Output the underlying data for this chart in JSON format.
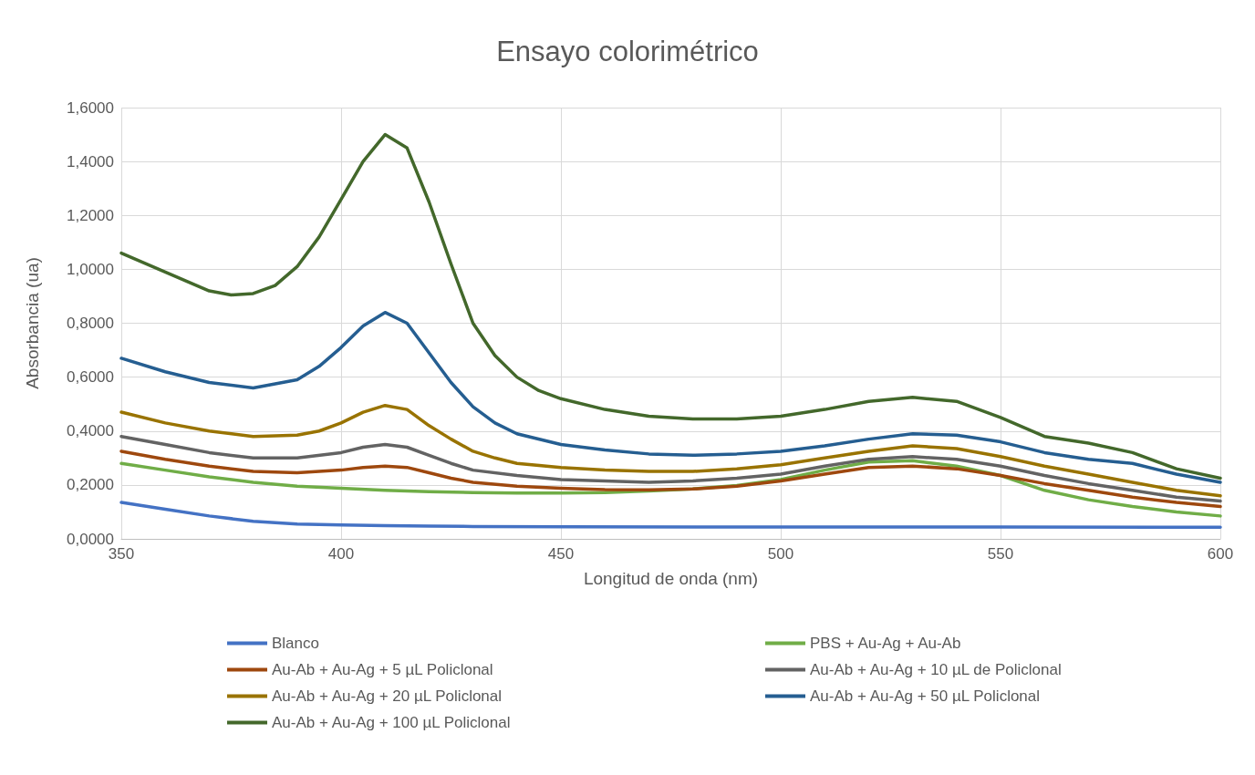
{
  "chart_data": {
    "type": "line",
    "title": "Ensayo colorimétrico",
    "xlabel": "Longitud de onda (nm)",
    "ylabel": "Absorbancia (ua)",
    "xlim": [
      350,
      600
    ],
    "xticks": [
      350,
      400,
      450,
      500,
      550,
      600
    ],
    "ylim": [
      0,
      1.6
    ],
    "yticks": [
      {
        "value": 0,
        "label": "0,0000"
      },
      {
        "value": 0.2,
        "label": "0,2000"
      },
      {
        "value": 0.4,
        "label": "0,4000"
      },
      {
        "value": 0.6,
        "label": "0,6000"
      },
      {
        "value": 0.8,
        "label": "0,8000"
      },
      {
        "value": 1.0,
        "label": "1,0000"
      },
      {
        "value": 1.2,
        "label": "1,2000"
      },
      {
        "value": 1.4,
        "label": "1,4000"
      },
      {
        "value": 1.6,
        "label": "1,6000"
      }
    ],
    "grid": true,
    "legend": "bottom",
    "marker": "none",
    "line_style": "solid",
    "series": [
      {
        "name": "Blanco",
        "color": "#4472c4",
        "x": [
          350,
          360,
          370,
          380,
          390,
          400,
          410,
          420,
          430,
          450,
          500,
          550,
          600
        ],
        "values": [
          0.135,
          0.11,
          0.085,
          0.065,
          0.055,
          0.052,
          0.049,
          0.047,
          0.046,
          0.045,
          0.044,
          0.044,
          0.043
        ]
      },
      {
        "name": "PBS + Au-Ag + Au-Ab",
        "color": "#70ad47",
        "x": [
          350,
          360,
          370,
          380,
          390,
          400,
          410,
          420,
          430,
          440,
          450,
          460,
          470,
          480,
          490,
          500,
          510,
          520,
          530,
          540,
          550,
          560,
          570,
          580,
          590,
          600
        ],
        "values": [
          0.28,
          0.255,
          0.23,
          0.21,
          0.195,
          0.188,
          0.18,
          0.175,
          0.172,
          0.17,
          0.17,
          0.172,
          0.178,
          0.185,
          0.198,
          0.22,
          0.255,
          0.285,
          0.29,
          0.27,
          0.235,
          0.18,
          0.145,
          0.12,
          0.1,
          0.085
        ]
      },
      {
        "name": "Au-Ab + Au-Ag + 5 µL Policlonal",
        "color": "#9e480e",
        "x": [
          350,
          360,
          370,
          380,
          390,
          400,
          405,
          410,
          415,
          420,
          425,
          430,
          440,
          450,
          460,
          470,
          480,
          490,
          500,
          510,
          520,
          530,
          540,
          550,
          560,
          570,
          580,
          590,
          600
        ],
        "values": [
          0.325,
          0.295,
          0.27,
          0.25,
          0.245,
          0.255,
          0.265,
          0.27,
          0.265,
          0.245,
          0.225,
          0.21,
          0.195,
          0.188,
          0.183,
          0.182,
          0.185,
          0.195,
          0.215,
          0.24,
          0.265,
          0.27,
          0.26,
          0.235,
          0.205,
          0.18,
          0.155,
          0.135,
          0.12
        ]
      },
      {
        "name": "Au-Ab + Au-Ag + 10 µL de Policlonal",
        "color": "#636363",
        "x": [
          350,
          360,
          370,
          380,
          390,
          400,
          405,
          410,
          415,
          420,
          425,
          430,
          440,
          450,
          460,
          470,
          480,
          490,
          500,
          510,
          520,
          530,
          540,
          550,
          560,
          570,
          580,
          590,
          600
        ],
        "values": [
          0.38,
          0.35,
          0.32,
          0.3,
          0.3,
          0.32,
          0.34,
          0.35,
          0.34,
          0.31,
          0.28,
          0.255,
          0.235,
          0.22,
          0.215,
          0.21,
          0.215,
          0.225,
          0.24,
          0.27,
          0.295,
          0.305,
          0.295,
          0.27,
          0.235,
          0.205,
          0.18,
          0.155,
          0.14
        ]
      },
      {
        "name": "Au-Ab + Au-Ag + 20 µL Policlonal",
        "color": "#997300",
        "x": [
          350,
          360,
          370,
          380,
          390,
          395,
          400,
          405,
          410,
          415,
          420,
          425,
          430,
          435,
          440,
          450,
          460,
          470,
          480,
          490,
          500,
          510,
          520,
          530,
          540,
          550,
          560,
          570,
          580,
          590,
          600
        ],
        "values": [
          0.47,
          0.43,
          0.4,
          0.38,
          0.385,
          0.4,
          0.43,
          0.47,
          0.495,
          0.48,
          0.42,
          0.37,
          0.325,
          0.3,
          0.28,
          0.265,
          0.255,
          0.25,
          0.25,
          0.26,
          0.275,
          0.3,
          0.325,
          0.345,
          0.335,
          0.305,
          0.27,
          0.24,
          0.21,
          0.18,
          0.16
        ]
      },
      {
        "name": "Au-Ab + Au-Ag + 50 µL Policlonal",
        "color": "#255e91",
        "x": [
          350,
          360,
          370,
          380,
          390,
          395,
          400,
          405,
          410,
          415,
          420,
          425,
          430,
          435,
          440,
          450,
          460,
          470,
          480,
          490,
          500,
          510,
          520,
          530,
          540,
          550,
          560,
          570,
          580,
          590,
          600
        ],
        "values": [
          0.67,
          0.62,
          0.58,
          0.56,
          0.59,
          0.64,
          0.71,
          0.79,
          0.84,
          0.8,
          0.69,
          0.58,
          0.49,
          0.43,
          0.39,
          0.35,
          0.33,
          0.315,
          0.31,
          0.315,
          0.325,
          0.345,
          0.37,
          0.39,
          0.385,
          0.36,
          0.32,
          0.295,
          0.28,
          0.24,
          0.21
        ]
      },
      {
        "name": "Au-Ab + Au-Ag + 100 µL Policlonal",
        "color": "#43682b",
        "x": [
          350,
          360,
          370,
          375,
          380,
          385,
          390,
          395,
          400,
          405,
          410,
          415,
          420,
          425,
          430,
          435,
          440,
          445,
          450,
          460,
          470,
          480,
          490,
          500,
          510,
          520,
          530,
          540,
          550,
          560,
          570,
          580,
          590,
          600
        ],
        "values": [
          1.06,
          0.99,
          0.92,
          0.905,
          0.91,
          0.94,
          1.01,
          1.12,
          1.26,
          1.4,
          1.5,
          1.45,
          1.25,
          1.02,
          0.8,
          0.68,
          0.6,
          0.55,
          0.52,
          0.48,
          0.455,
          0.445,
          0.445,
          0.455,
          0.48,
          0.51,
          0.525,
          0.51,
          0.45,
          0.38,
          0.355,
          0.32,
          0.26,
          0.225
        ]
      }
    ]
  }
}
